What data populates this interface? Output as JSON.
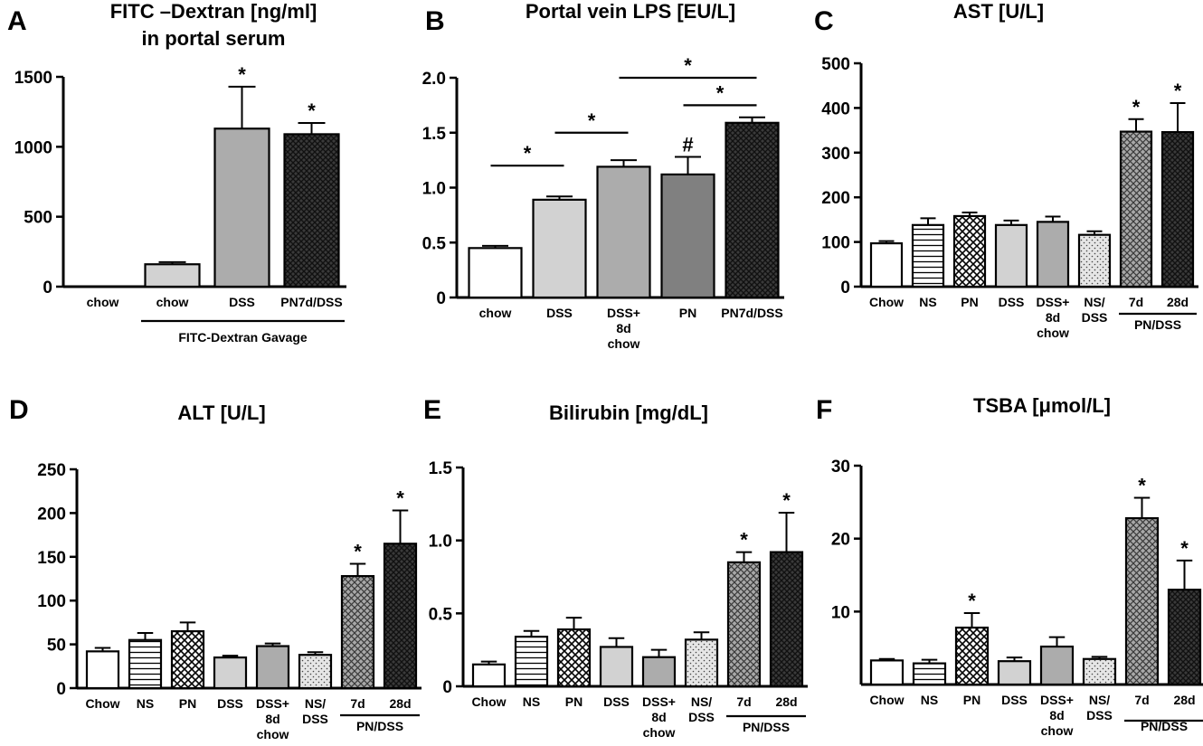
{
  "chart_data": [
    {
      "id": "A",
      "panel_label": "A",
      "type": "bar",
      "title": "FITC –Dextran [ng/ml]",
      "subtitle": "in portal serum",
      "categories": [
        "chow",
        "chow",
        "DSS",
        "PN7d/DSS"
      ],
      "values": [
        0,
        160,
        1130,
        1090
      ],
      "errors": [
        0,
        15,
        300,
        80
      ],
      "fills": [
        "white",
        "lightgray",
        "gray",
        "darkcheck"
      ],
      "yticks": [
        "0",
        "500",
        "1000",
        "1500"
      ],
      "ylim": [
        0,
        1500
      ],
      "annotations": [
        "",
        "",
        "*",
        "*"
      ],
      "group_label": "FITC-Dextran Gavage",
      "brackets": []
    },
    {
      "id": "B",
      "panel_label": "B",
      "type": "bar",
      "title": "Portal vein LPS [EU/L]",
      "subtitle": "",
      "categories": [
        "chow",
        "DSS",
        "DSS+\n8d\nchow",
        "PN",
        "PN7d/DSS"
      ],
      "values": [
        0.45,
        0.89,
        1.19,
        1.12,
        1.59
      ],
      "errors": [
        0.02,
        0.03,
        0.06,
        0.16,
        0.05
      ],
      "fills": [
        "white",
        "lightgray",
        "gray",
        "darkgray",
        "darkcheck"
      ],
      "yticks": [
        "0",
        "0.5",
        "1.0",
        "1.5",
        "2.0"
      ],
      "ylim": [
        0,
        2.0
      ],
      "annotations": [
        "",
        "",
        "",
        "#",
        ""
      ],
      "group_label": "",
      "brackets": [
        {
          "from": 0,
          "to": 1,
          "label": "*",
          "level": 1.2
        },
        {
          "from": 1,
          "to": 2,
          "label": "*",
          "level": 1.5
        },
        {
          "from": 3,
          "to": 4,
          "label": "*",
          "level": 1.75
        },
        {
          "from": 2,
          "to": 4,
          "label": "*",
          "level": 2.0
        }
      ]
    },
    {
      "id": "C",
      "panel_label": "C",
      "type": "bar",
      "title": "AST [U/L]",
      "subtitle": "",
      "categories": [
        "Chow",
        "NS",
        "PN",
        "DSS",
        "DSS+\n8d\nchow",
        "NS/\nDSS",
        "7d",
        "28d"
      ],
      "values": [
        97,
        138,
        158,
        138,
        145,
        116,
        347,
        346
      ],
      "errors": [
        5,
        15,
        8,
        10,
        12,
        8,
        28,
        65
      ],
      "fills": [
        "white",
        "hlines",
        "crosshatch",
        "lightgray",
        "gray",
        "dotted",
        "grayhatch",
        "darkcheck"
      ],
      "yticks": [
        "0",
        "100",
        "200",
        "300",
        "400",
        "500"
      ],
      "ylim": [
        0,
        500
      ],
      "annotations": [
        "",
        "",
        "",
        "",
        "",
        "",
        "*",
        "*"
      ],
      "group_label": "PN/DSS",
      "brackets": []
    },
    {
      "id": "D",
      "panel_label": "D",
      "type": "bar",
      "title": "ALT [U/L]",
      "subtitle": "",
      "categories": [
        "Chow",
        "NS",
        "PN",
        "DSS",
        "DSS+\n8d\nchow",
        "NS/\nDSS",
        "7d",
        "28d"
      ],
      "values": [
        42,
        55,
        65,
        35,
        48,
        38,
        128,
        165
      ],
      "errors": [
        4,
        8,
        10,
        2,
        3,
        3,
        14,
        38
      ],
      "fills": [
        "white",
        "hlines",
        "crosshatch",
        "lightgray",
        "gray",
        "dotted",
        "grayhatch",
        "darkcheck"
      ],
      "yticks": [
        "0",
        "50",
        "100",
        "150",
        "200",
        "250"
      ],
      "ylim": [
        0,
        250
      ],
      "annotations": [
        "",
        "",
        "",
        "",
        "",
        "",
        "*",
        "*"
      ],
      "group_label": "PN/DSS",
      "brackets": []
    },
    {
      "id": "E",
      "panel_label": "E",
      "type": "bar",
      "title": "Bilirubin [mg/dL]",
      "subtitle": "",
      "categories": [
        "Chow",
        "NS",
        "PN",
        "DSS",
        "DSS+\n8d\nchow",
        "NS/\nDSS",
        "7d",
        "28d"
      ],
      "values": [
        0.15,
        0.34,
        0.39,
        0.27,
        0.2,
        0.32,
        0.85,
        0.92
      ],
      "errors": [
        0.02,
        0.04,
        0.08,
        0.06,
        0.05,
        0.05,
        0.07,
        0.27
      ],
      "fills": [
        "white",
        "hlines",
        "crosshatch",
        "lightgray",
        "gray",
        "dotted",
        "grayhatch",
        "darkcheck"
      ],
      "yticks": [
        "0",
        "0.5",
        "1.0",
        "1.5"
      ],
      "ylim": [
        0,
        1.5
      ],
      "annotations": [
        "",
        "",
        "",
        "",
        "",
        "",
        "*",
        "*"
      ],
      "group_label": "PN/DSS",
      "brackets": []
    },
    {
      "id": "F",
      "panel_label": "F",
      "type": "bar",
      "title": "TSBA [μmol/L]",
      "subtitle": "",
      "categories": [
        "Chow",
        "NS",
        "PN",
        "DSS",
        "DSS+\n8d\nchow",
        "NS/\nDSS",
        "7d",
        "28d"
      ],
      "values": [
        3.3,
        2.9,
        7.8,
        3.2,
        5.2,
        3.5,
        22.8,
        13.0
      ],
      "errors": [
        0.2,
        0.5,
        2.0,
        0.5,
        1.3,
        0.3,
        2.8,
        4.0
      ],
      "fills": [
        "white",
        "hlines",
        "crosshatch",
        "lightgray",
        "gray",
        "dotted",
        "grayhatch",
        "darkcheck"
      ],
      "yticks": [
        "10",
        "20",
        "30"
      ],
      "ylim": [
        0,
        30
      ],
      "annotations": [
        "",
        "",
        "*",
        "",
        "",
        "",
        "*",
        "*"
      ],
      "group_label": "PN/DSS",
      "brackets": []
    }
  ],
  "colors": {
    "lightgray": "#d2d2d2",
    "gray": "#acacac",
    "darkgray": "#808080",
    "axis": "#000000"
  }
}
